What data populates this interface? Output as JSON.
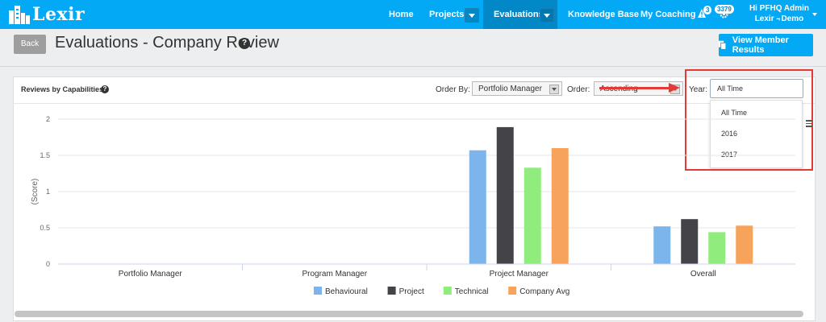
{
  "brand": {
    "name": "Lexir"
  },
  "nav": {
    "items": [
      "Home",
      "Projects",
      "Evaluations",
      "Knowledge Base",
      "My Coaching"
    ],
    "active": "Evaluations",
    "notifications_count": "3",
    "messages_count": "3379",
    "user_greeting": "Hi PFHQ Admin ,",
    "user_org": "Lexir - Demo"
  },
  "page": {
    "back_label": "Back",
    "title": "Evaluations - Company Review",
    "view_results_label": "View Member Results"
  },
  "panel": {
    "title": "Reviews by Capabilities",
    "order_by_label": "Order By:",
    "order_by_value": "Portfolio Manager",
    "order_label": "Order:",
    "order_value": "Ascending",
    "year_label": "Year:",
    "year_value": "All Time",
    "year_options": [
      "All Time",
      "2016",
      "2017"
    ]
  },
  "colors": {
    "accent": "#03a9f4",
    "annotation": "#e53935"
  },
  "chart_data": {
    "type": "bar",
    "categories": [
      "Portfolio Manager",
      "Program Manager",
      "Project Manager",
      "Overall"
    ],
    "series": [
      {
        "name": "Behavioural",
        "color": "#7cb5ec",
        "values": [
          0,
          0,
          1.57,
          0.52
        ]
      },
      {
        "name": "Project",
        "color": "#434348",
        "values": [
          0,
          0,
          1.89,
          0.62
        ]
      },
      {
        "name": "Technical",
        "color": "#90ed7d",
        "values": [
          0,
          0,
          1.33,
          0.44
        ]
      },
      {
        "name": "Company Avg",
        "color": "#f7a35c",
        "values": [
          0,
          0,
          1.6,
          0.53
        ]
      }
    ],
    "ylabel": "(Score)",
    "ylim": [
      0,
      2
    ],
    "yticks": [
      "0",
      "0.5",
      "1",
      "1.5",
      "2"
    ],
    "ytick_values": [
      0,
      0.5,
      1,
      1.5,
      2
    ],
    "grid": true,
    "legend_position": "bottom-center"
  }
}
